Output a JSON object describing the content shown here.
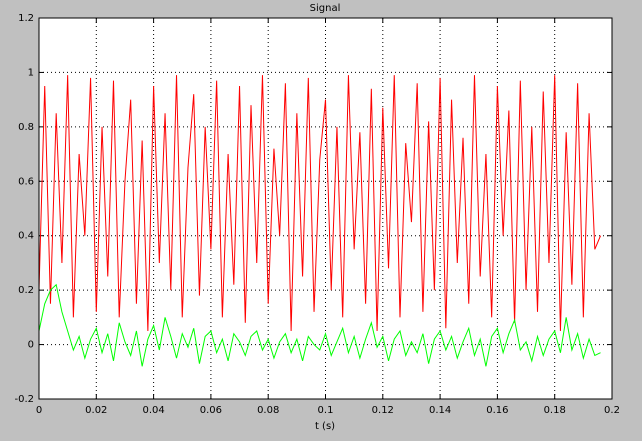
{
  "chart_data": {
    "type": "line",
    "title": "Signal",
    "xlabel": "t (s)",
    "x": [
      0,
      0.002,
      0.004,
      0.006,
      0.008,
      0.01,
      0.012,
      0.014,
      0.016,
      0.018,
      0.02,
      0.022,
      0.024,
      0.026,
      0.028,
      0.03,
      0.032,
      0.034,
      0.036,
      0.038,
      0.04,
      0.042,
      0.044,
      0.046,
      0.048,
      0.05,
      0.052,
      0.054,
      0.056,
      0.058,
      0.06,
      0.062,
      0.064,
      0.066,
      0.068,
      0.07,
      0.072,
      0.074,
      0.076,
      0.078,
      0.08,
      0.082,
      0.084,
      0.086,
      0.088,
      0.09,
      0.092,
      0.094,
      0.096,
      0.098,
      0.1,
      0.102,
      0.104,
      0.106,
      0.108,
      0.11,
      0.112,
      0.114,
      0.116,
      0.118,
      0.12,
      0.122,
      0.124,
      0.126,
      0.128,
      0.13,
      0.132,
      0.134,
      0.136,
      0.138,
      0.14,
      0.142,
      0.144,
      0.146,
      0.148,
      0.15,
      0.152,
      0.154,
      0.156,
      0.158,
      0.16,
      0.162,
      0.164,
      0.166,
      0.168,
      0.17,
      0.172,
      0.174,
      0.176,
      0.178,
      0.18,
      0.182,
      0.184,
      0.186,
      0.188,
      0.19,
      0.192,
      0.194,
      0.196
    ],
    "series": [
      {
        "color": "#ff0000",
        "values": [
          0.2,
          0.95,
          0.15,
          0.85,
          0.3,
          0.99,
          0.1,
          0.7,
          0.4,
          0.98,
          0.12,
          0.8,
          0.25,
          0.97,
          0.1,
          0.6,
          0.9,
          0.15,
          0.75,
          0.05,
          0.95,
          0.3,
          0.85,
          0.2,
          0.99,
          0.1,
          0.65,
          0.92,
          0.18,
          0.8,
          0.35,
          0.97,
          0.1,
          0.7,
          0.22,
          0.95,
          0.08,
          0.88,
          0.3,
          0.99,
          0.15,
          0.72,
          0.4,
          0.96,
          0.05,
          0.85,
          0.25,
          0.98,
          0.12,
          0.68,
          0.9,
          0.2,
          0.8,
          0.1,
          0.99,
          0.35,
          0.78,
          0.15,
          0.94,
          0.05,
          0.87,
          0.28,
          0.99,
          0.1,
          0.74,
          0.45,
          0.96,
          0.12,
          0.82,
          0.2,
          0.98,
          0.06,
          0.9,
          0.3,
          0.76,
          0.15,
          0.99,
          0.25,
          0.7,
          0.1,
          0.95,
          0.4,
          0.86,
          0.08,
          0.97,
          0.2,
          0.8,
          0.12,
          0.93,
          0.3,
          0.99,
          0.05,
          0.78,
          0.22,
          0.96,
          0.1,
          0.85,
          0.35,
          0.4
        ]
      },
      {
        "color": "#00ff00",
        "values": [
          0.05,
          0.15,
          0.2,
          0.22,
          0.12,
          0.05,
          -0.02,
          0.03,
          -0.05,
          0.02,
          0.06,
          -0.03,
          0.04,
          -0.06,
          0.08,
          0.01,
          -0.04,
          0.05,
          -0.08,
          0.02,
          0.07,
          -0.02,
          0.1,
          0.03,
          -0.05,
          0.04,
          -0.01,
          0.06,
          -0.07,
          0.03,
          0.05,
          -0.03,
          0.02,
          -0.06,
          0.04,
          0.01,
          -0.04,
          0.03,
          0.05,
          -0.02,
          0.02,
          -0.05,
          0.01,
          0.04,
          -0.03,
          0.02,
          -0.06,
          0.03,
          0.0,
          -0.02,
          0.04,
          -0.04,
          0.01,
          0.06,
          -0.03,
          0.03,
          -0.05,
          0.02,
          0.08,
          -0.01,
          0.03,
          -0.06,
          0.02,
          0.05,
          -0.04,
          0.01,
          -0.03,
          0.04,
          -0.07,
          0.02,
          0.05,
          -0.02,
          0.03,
          -0.05,
          0.01,
          0.06,
          -0.04,
          0.02,
          -0.08,
          0.03,
          0.06,
          -0.03,
          0.04,
          0.09,
          -0.02,
          0.01,
          -0.06,
          0.03,
          -0.04,
          0.02,
          0.05,
          -0.03,
          0.1,
          -0.02,
          0.04,
          -0.05,
          0.02,
          -0.04,
          -0.03
        ]
      }
    ],
    "xlim": [
      0,
      0.2
    ],
    "xticks": [
      0,
      0.02,
      0.04,
      0.06,
      0.08,
      0.1,
      0.12,
      0.14,
      0.16,
      0.18,
      0.2
    ],
    "ylim": [
      -0.2,
      1.2
    ],
    "yticks": [
      -0.2,
      0,
      0.2,
      0.4,
      0.6,
      0.8,
      1,
      1.2
    ],
    "grid": true
  }
}
